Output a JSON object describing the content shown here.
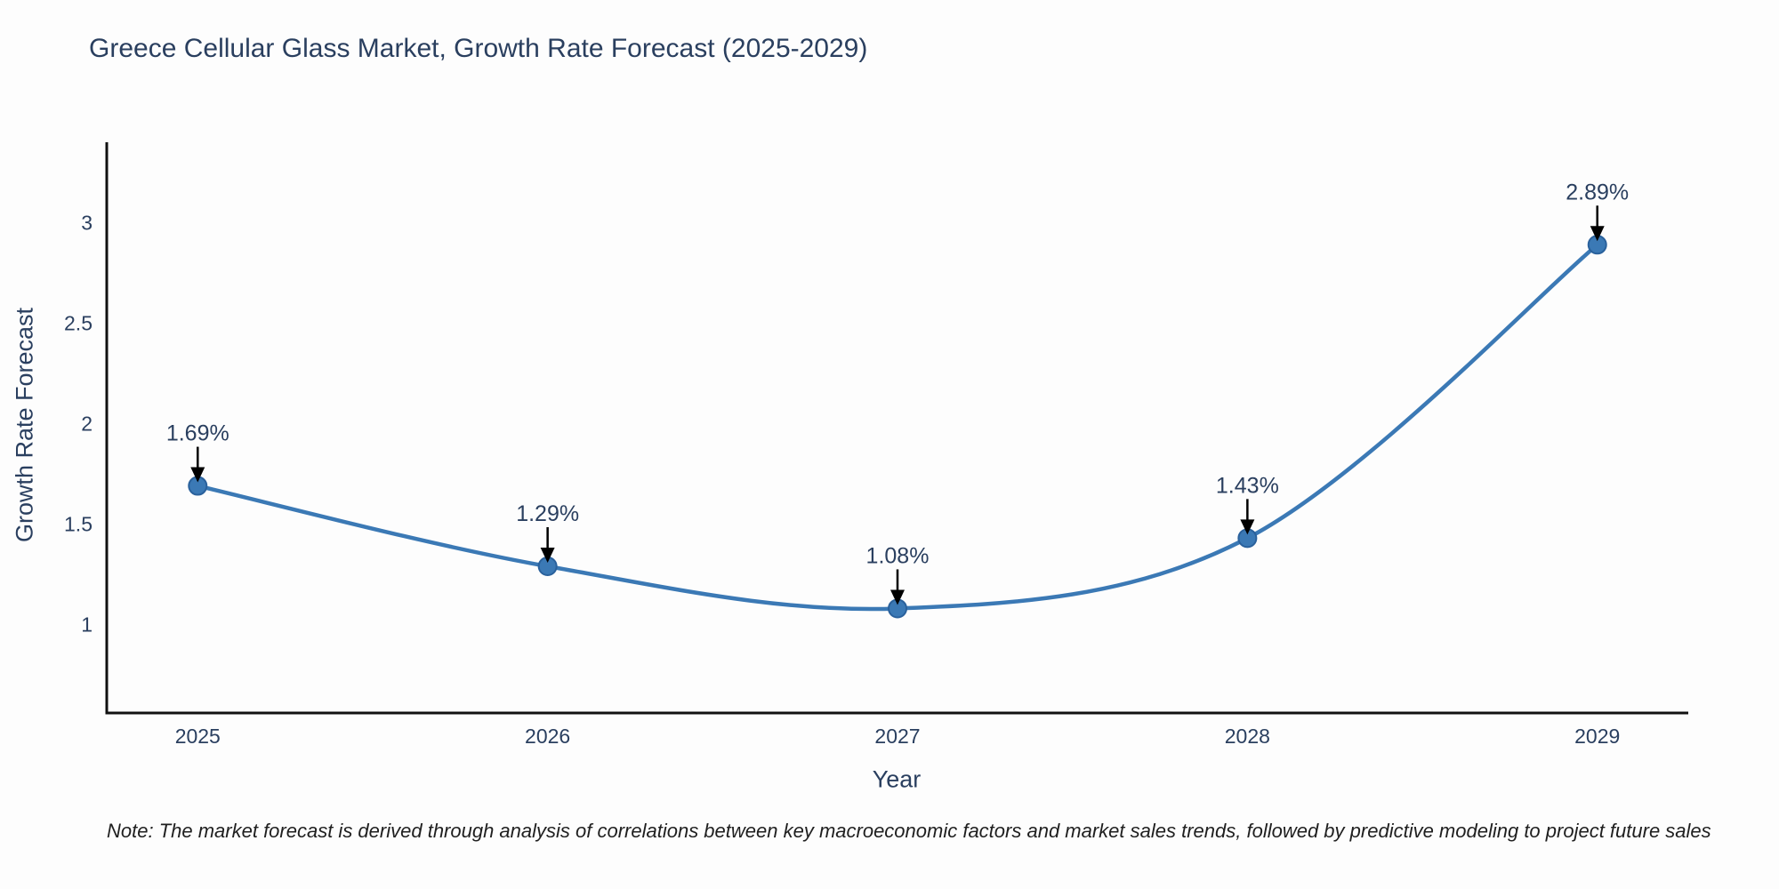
{
  "chart_data": {
    "type": "line",
    "title": "Greece Cellular Glass Market, Growth Rate Forecast (2025-2029)",
    "xlabel": "Year",
    "ylabel": "Growth Rate Forecast",
    "x": [
      2025,
      2026,
      2027,
      2028,
      2029
    ],
    "xtick_labels": [
      "2025",
      "2026",
      "2027",
      "2028",
      "2029"
    ],
    "series": [
      {
        "name": "Growth Rate Forecast",
        "values": [
          1.69,
          1.29,
          1.08,
          1.43,
          2.89
        ],
        "point_labels": [
          "1.69%",
          "1.29%",
          "1.08%",
          "1.43%",
          "2.89%"
        ]
      }
    ],
    "yticks": [
      1,
      1.5,
      2,
      2.5,
      3
    ],
    "ytick_labels": [
      "1",
      "1.5",
      "2",
      "2.5",
      "3"
    ],
    "xlim": [
      2024.74,
      2029.26
    ],
    "ylim": [
      0.56,
      3.4
    ],
    "grid": false,
    "legend": "none",
    "line_shape": "spline",
    "annotation_style": "value label above point with black down arrow",
    "colors": {
      "line": "#3b79b5",
      "marker": "#3b79b5",
      "marker_border": "#2a619c",
      "axis": "#111111",
      "text": "#2a3f5f",
      "annotation_arrow": "#000000"
    }
  },
  "note": {
    "text": "Note: The market forecast is derived through analysis of correlations between key macroeconomic factors and market sales trends, followed by predictive modeling to project future sales"
  }
}
